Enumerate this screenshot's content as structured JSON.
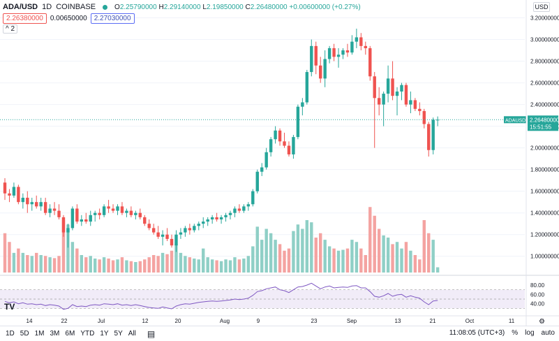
{
  "header": {
    "symbol": "ADA/USD",
    "interval": "1D",
    "exchange": "COINBASE",
    "open_label": "O",
    "open": "2.25790000",
    "high_label": "H",
    "high": "2.29140000",
    "low_label": "L",
    "low": "2.19850000",
    "close_label": "C",
    "close": "2.26480000",
    "change": "+0.00600000 (+0.27%)",
    "bid": "2.26380000",
    "spread": "0.00650000",
    "ask": "2.27030000",
    "collapse_label": "^ 2",
    "currency": "USD"
  },
  "price_label": {
    "ticker": "ADAUSD",
    "price": "2.26480000",
    "countdown": "15:51:55"
  },
  "toolbar": {
    "timeframes": [
      "1D",
      "5D",
      "1M",
      "3M",
      "6M",
      "YTD",
      "1Y",
      "5Y",
      "All"
    ],
    "time": "11:08:05 (UTC+3)",
    "percent": "%",
    "log": "log",
    "auto": "auto"
  },
  "logo": "TV",
  "chart_data": {
    "type": "candlestick",
    "x_ticks": [
      "14",
      "22",
      "Jul",
      "12",
      "20",
      "Aug",
      "9",
      "23",
      "Sep",
      "13",
      "21",
      "Oct",
      "11"
    ],
    "y_ticks": [
      "3.20000000",
      "3.00000000",
      "2.80000000",
      "2.60000000",
      "2.40000000",
      "2.20000000",
      "2.00000000",
      "1.80000000",
      "1.60000000",
      "1.40000000",
      "1.20000000",
      "1.00000000"
    ],
    "ylim": [
      0.85,
      3.3
    ],
    "rsi_ticks": [
      "80.00",
      "60.00",
      "40.00"
    ],
    "rsi_lim": [
      20,
      95
    ],
    "colors": {
      "up": "#26a69a",
      "down": "#ef5350",
      "rsi": "#7e57c2",
      "up_vol": "#8fcfc6",
      "down_vol": "#f4a3a1"
    },
    "candles": [
      [
        1.68,
        1.72,
        1.52,
        1.58,
        90
      ],
      [
        1.58,
        1.62,
        1.5,
        1.56,
        70
      ],
      [
        1.56,
        1.68,
        1.54,
        1.64,
        45
      ],
      [
        1.64,
        1.66,
        1.48,
        1.5,
        55
      ],
      [
        1.5,
        1.58,
        1.44,
        1.54,
        45
      ],
      [
        1.54,
        1.6,
        1.4,
        1.48,
        40
      ],
      [
        1.48,
        1.54,
        1.42,
        1.5,
        38
      ],
      [
        1.5,
        1.56,
        1.44,
        1.46,
        45
      ],
      [
        1.46,
        1.54,
        1.42,
        1.5,
        40
      ],
      [
        1.5,
        1.54,
        1.38,
        1.4,
        38
      ],
      [
        1.4,
        1.48,
        1.36,
        1.44,
        35
      ],
      [
        1.44,
        1.5,
        1.38,
        1.42,
        33
      ],
      [
        1.42,
        1.48,
        1.34,
        1.36,
        38
      ],
      [
        1.36,
        1.38,
        1.18,
        1.22,
        120
      ],
      [
        1.22,
        1.3,
        1.08,
        1.26,
        110
      ],
      [
        1.26,
        1.46,
        1.24,
        1.44,
        70
      ],
      [
        1.44,
        1.48,
        1.3,
        1.32,
        55
      ],
      [
        1.32,
        1.38,
        1.28,
        1.34,
        40
      ],
      [
        1.34,
        1.4,
        1.3,
        1.32,
        35
      ],
      [
        1.32,
        1.42,
        1.28,
        1.38,
        38
      ],
      [
        1.38,
        1.42,
        1.32,
        1.4,
        32
      ],
      [
        1.4,
        1.44,
        1.34,
        1.38,
        30
      ],
      [
        1.38,
        1.48,
        1.36,
        1.46,
        35
      ],
      [
        1.46,
        1.52,
        1.4,
        1.44,
        32
      ],
      [
        1.44,
        1.48,
        1.4,
        1.42,
        28
      ],
      [
        1.42,
        1.48,
        1.38,
        1.46,
        30
      ],
      [
        1.46,
        1.5,
        1.38,
        1.4,
        35
      ],
      [
        1.4,
        1.44,
        1.36,
        1.42,
        28
      ],
      [
        1.42,
        1.46,
        1.36,
        1.38,
        26
      ],
      [
        1.38,
        1.42,
        1.34,
        1.4,
        24
      ],
      [
        1.4,
        1.44,
        1.34,
        1.36,
        26
      ],
      [
        1.36,
        1.38,
        1.28,
        1.3,
        30
      ],
      [
        1.3,
        1.34,
        1.24,
        1.26,
        35
      ],
      [
        1.26,
        1.3,
        1.2,
        1.22,
        40
      ],
      [
        1.22,
        1.28,
        1.16,
        1.18,
        38
      ],
      [
        1.18,
        1.24,
        1.1,
        1.2,
        45
      ],
      [
        1.2,
        1.26,
        1.14,
        1.16,
        42
      ],
      [
        1.16,
        1.2,
        1.08,
        1.1,
        50
      ],
      [
        1.1,
        1.24,
        1.04,
        1.2,
        65
      ],
      [
        1.2,
        1.26,
        1.16,
        1.22,
        45
      ],
      [
        1.22,
        1.28,
        1.18,
        1.26,
        38
      ],
      [
        1.26,
        1.3,
        1.2,
        1.24,
        35
      ],
      [
        1.24,
        1.3,
        1.22,
        1.28,
        32
      ],
      [
        1.28,
        1.32,
        1.24,
        1.3,
        30
      ],
      [
        1.3,
        1.36,
        1.26,
        1.32,
        55
      ],
      [
        1.32,
        1.36,
        1.28,
        1.34,
        35
      ],
      [
        1.34,
        1.38,
        1.3,
        1.36,
        30
      ],
      [
        1.36,
        1.4,
        1.32,
        1.34,
        28
      ],
      [
        1.34,
        1.38,
        1.3,
        1.36,
        26
      ],
      [
        1.36,
        1.4,
        1.32,
        1.38,
        30
      ],
      [
        1.38,
        1.42,
        1.34,
        1.4,
        28
      ],
      [
        1.4,
        1.46,
        1.36,
        1.44,
        35
      ],
      [
        1.44,
        1.48,
        1.4,
        1.42,
        30
      ],
      [
        1.42,
        1.48,
        1.4,
        1.46,
        32
      ],
      [
        1.46,
        1.5,
        1.42,
        1.48,
        38
      ],
      [
        1.48,
        1.62,
        1.46,
        1.6,
        60
      ],
      [
        1.6,
        1.8,
        1.58,
        1.78,
        105
      ],
      [
        1.78,
        1.86,
        1.74,
        1.82,
        75
      ],
      [
        1.82,
        2.0,
        1.8,
        1.96,
        100
      ],
      [
        1.96,
        2.1,
        1.92,
        2.08,
        90
      ],
      [
        2.08,
        2.2,
        2.04,
        2.16,
        75
      ],
      [
        2.16,
        2.18,
        2.02,
        2.06,
        65
      ],
      [
        2.06,
        2.14,
        2.0,
        2.02,
        50
      ],
      [
        2.02,
        2.06,
        1.92,
        1.94,
        55
      ],
      [
        1.94,
        2.12,
        1.9,
        2.1,
        95
      ],
      [
        2.1,
        2.4,
        2.08,
        2.38,
        110
      ],
      [
        2.38,
        2.46,
        2.3,
        2.42,
        100
      ],
      [
        2.42,
        2.72,
        2.4,
        2.7,
        120
      ],
      [
        2.7,
        3.0,
        2.66,
        2.94,
        115
      ],
      [
        2.94,
        2.98,
        2.68,
        2.76,
        80
      ],
      [
        2.76,
        2.84,
        2.6,
        2.64,
        90
      ],
      [
        2.64,
        2.9,
        2.56,
        2.82,
        75
      ],
      [
        2.82,
        2.94,
        2.78,
        2.92,
        60
      ],
      [
        2.92,
        2.96,
        2.8,
        2.84,
        55
      ],
      [
        2.84,
        2.92,
        2.74,
        2.86,
        50
      ],
      [
        2.86,
        2.92,
        2.82,
        2.9,
        52
      ],
      [
        2.9,
        2.96,
        2.84,
        2.88,
        55
      ],
      [
        2.88,
        3.04,
        2.86,
        2.98,
        75
      ],
      [
        2.98,
        3.1,
        2.92,
        3.02,
        70
      ],
      [
        3.02,
        3.06,
        2.9,
        2.94,
        55
      ],
      [
        2.94,
        2.98,
        2.86,
        2.92,
        40
      ],
      [
        2.92,
        2.94,
        2.62,
        2.66,
        150
      ],
      [
        2.66,
        2.7,
        2.0,
        2.46,
        130
      ],
      [
        2.46,
        2.56,
        2.3,
        2.4,
        100
      ],
      [
        2.4,
        2.52,
        2.2,
        2.5,
        85
      ],
      [
        2.5,
        2.76,
        2.42,
        2.64,
        80
      ],
      [
        2.64,
        2.8,
        2.44,
        2.48,
        65
      ],
      [
        2.48,
        2.56,
        2.3,
        2.52,
        70
      ],
      [
        2.52,
        2.6,
        2.44,
        2.58,
        55
      ],
      [
        2.58,
        2.6,
        2.38,
        2.4,
        70
      ],
      [
        2.4,
        2.52,
        2.32,
        2.44,
        50
      ],
      [
        2.44,
        2.46,
        2.34,
        2.36,
        40
      ],
      [
        2.36,
        2.42,
        2.3,
        2.34,
        30
      ],
      [
        2.34,
        2.36,
        2.18,
        2.22,
        120
      ],
      [
        2.22,
        2.24,
        1.92,
        1.98,
        90
      ],
      [
        1.98,
        2.28,
        1.94,
        2.26,
        75
      ],
      [
        2.26,
        2.29,
        2.2,
        2.26,
        12
      ]
    ],
    "rsi": [
      45,
      42,
      44,
      40,
      42,
      39,
      40,
      38,
      39,
      36,
      38,
      37,
      35,
      28,
      30,
      38,
      34,
      35,
      34,
      37,
      38,
      37,
      40,
      39,
      38,
      40,
      37,
      38,
      36,
      38,
      36,
      34,
      32,
      31,
      30,
      33,
      31,
      29,
      35,
      38,
      40,
      39,
      41,
      43,
      44,
      45,
      46,
      45,
      46,
      47,
      48,
      50,
      49,
      50,
      52,
      58,
      66,
      68,
      72,
      74,
      76,
      70,
      68,
      64,
      70,
      76,
      77,
      80,
      84,
      78,
      72,
      76,
      78,
      74,
      75,
      76,
      75,
      78,
      79,
      74,
      74,
      66,
      56,
      54,
      57,
      62,
      56,
      59,
      60,
      54,
      57,
      54,
      52,
      44,
      38,
      46,
      47
    ]
  }
}
